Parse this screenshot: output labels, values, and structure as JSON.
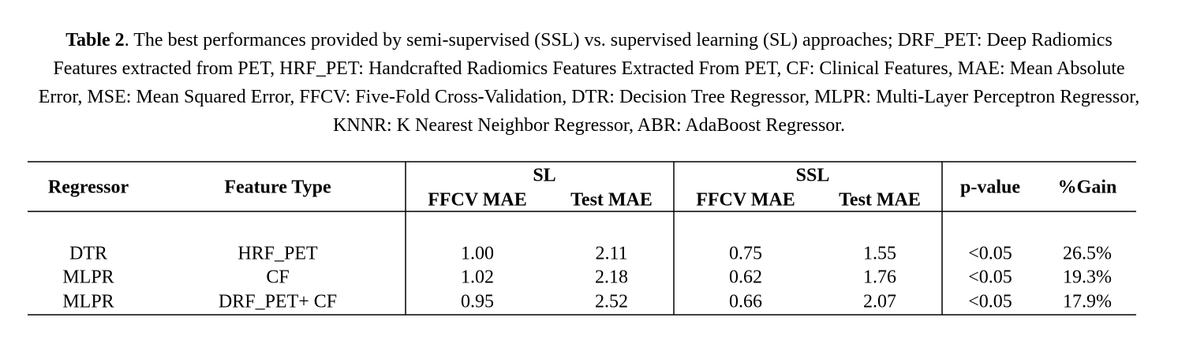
{
  "caption": {
    "label": "Table 2",
    "text": ". The best performances provided by  semi-supervised (SSL) vs. supervised learning (SL) approaches; DRF_PET: Deep Radiomics Features extracted from PET, HRF_PET: Handcrafted Radiomics Features Extracted From PET, CF: Clinical Features, MAE: Mean Absolute Error, MSE: Mean Squared Error, FFCV: Five-Fold Cross-Validation, DTR: Decision Tree Regressor, MLPR: Multi-Layer Perceptron Regressor, KNNR: K Nearest Neighbor Regressor, ABR: AdaBoost Regressor."
  },
  "table": {
    "headers": [
      "Regressor",
      "Feature Type",
      "p-value",
      "%Gain"
    ],
    "groups": [
      {
        "name": "SL",
        "columns": [
          "FFCV MAE",
          "Test MAE"
        ]
      },
      {
        "name": "SSL",
        "columns": [
          "FFCV MAE",
          "Test MAE"
        ]
      }
    ],
    "rows": [
      [
        "DTR",
        "HRF_PET",
        "1.00",
        "2.11",
        "0.75",
        "1.55",
        "<0.05",
        "26.5%"
      ],
      [
        "MLPR",
        "CF",
        "1.02",
        "2.18",
        "0.62",
        "1.76",
        "<0.05",
        "19.3%"
      ],
      [
        "MLPR",
        "DRF_PET+ CF",
        "0.95",
        "2.52",
        "0.66",
        "2.07",
        "<0.05",
        "17.9%"
      ]
    ]
  }
}
